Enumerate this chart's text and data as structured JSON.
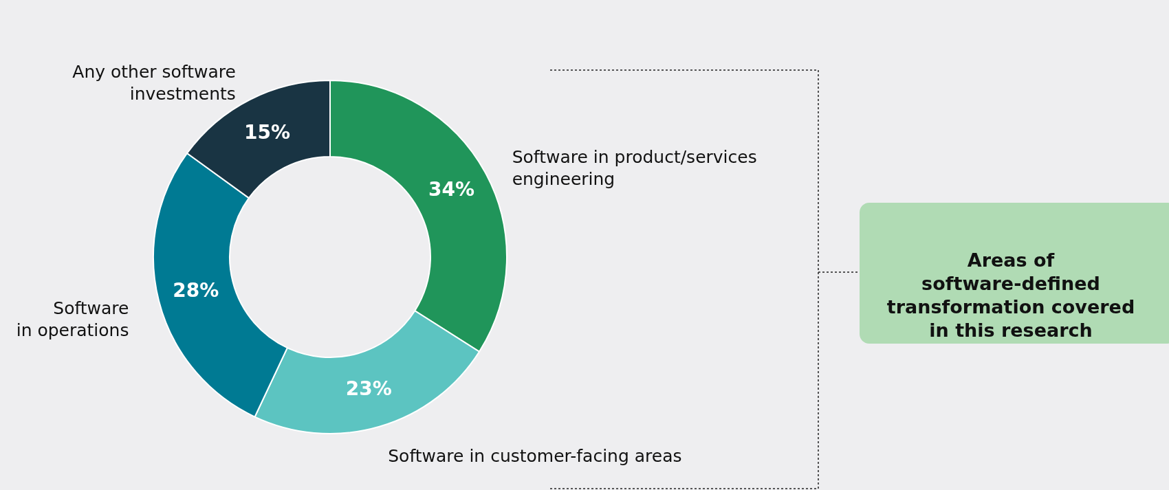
{
  "chart_data": {
    "type": "donut",
    "categories": [
      "Software in product/services\nengineering",
      "Software in customer-facing areas",
      "Software\nin operations",
      "Any other software\ninvestments"
    ],
    "values": [
      34,
      23,
      28,
      15
    ],
    "colors": [
      "#20955a",
      "#5cc4c1",
      "#007a93",
      "#193443"
    ],
    "value_labels": [
      "34%",
      "23%",
      "28%",
      "15%"
    ],
    "annotations": [
      "Areas of\nsoftware-defined\ntransformation covered\nin this research"
    ]
  }
}
